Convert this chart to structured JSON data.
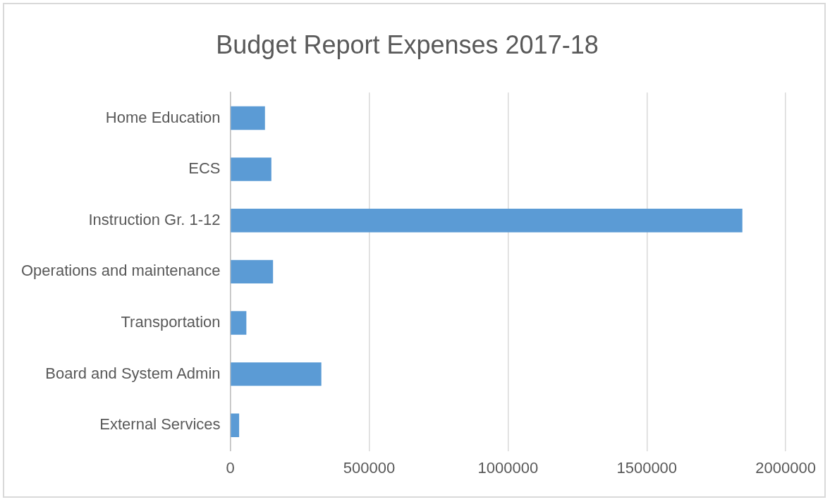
{
  "chart_data": {
    "type": "bar",
    "orientation": "horizontal",
    "title": "Budget Report Expenses 2017-18",
    "categories": [
      "Home Education",
      "ECS",
      "Instruction Gr. 1-12",
      "Operations and maintenance",
      "Transportation",
      "Board and System Admin",
      "External Services"
    ],
    "values": [
      125000,
      148000,
      1844000,
      154000,
      58000,
      328000,
      32000
    ],
    "color": "#5b9bd5",
    "xlim": [
      0,
      2000000
    ],
    "xticks": [
      0,
      500000,
      1000000,
      1500000,
      2000000
    ],
    "grid": "x",
    "legend": false
  }
}
